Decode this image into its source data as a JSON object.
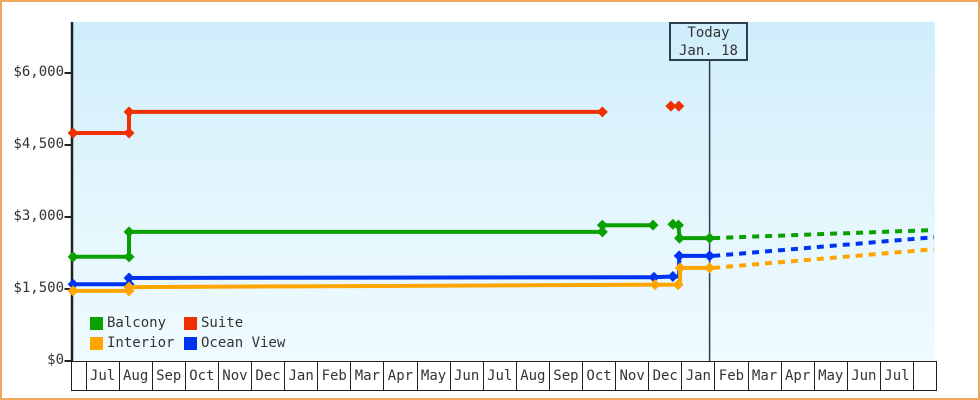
{
  "colors": {
    "frame_border": "#eda95e",
    "axis": "#222222",
    "text": "#333333",
    "today_line": "#2e3f4f",
    "plot_bg_top": "#cfeefb",
    "plot_bg_bottom": "#effbff"
  },
  "chart_data": {
    "type": "line",
    "title": "",
    "y_axis": {
      "ticks": [
        {
          "label": "$0",
          "value": 0
        },
        {
          "label": "$1,500",
          "value": 1500
        },
        {
          "label": "$3,000",
          "value": 3000
        },
        {
          "label": "$4,500",
          "value": 4500
        },
        {
          "label": "$6,000",
          "value": 6000
        }
      ],
      "range": [
        0,
        7060
      ],
      "grid": "off"
    },
    "x_axis": {
      "months": [
        "Jul",
        "Aug",
        "Sep",
        "Oct",
        "Nov",
        "Dec",
        "Jan",
        "Feb",
        "Mar",
        "Apr",
        "May",
        "Jun",
        "Jul",
        "Aug",
        "Sep",
        "Oct",
        "Nov",
        "Dec",
        "Jan",
        "Feb",
        "Mar",
        "Apr",
        "May",
        "Jun",
        "Jul"
      ]
    },
    "today": {
      "label": "Today",
      "date": "Jan. 18",
      "t": 18.84
    },
    "series": [
      {
        "name": "Suite",
        "color": "#f13000",
        "segments": [
          [
            [
              -0.39,
              4750
            ],
            [
              1.3,
              4750
            ],
            [
              1.3,
              5190
            ],
            [
              15.6,
              5190
            ]
          ]
        ],
        "markers": [
          [
            -0.39,
            4750
          ],
          [
            1.3,
            4750
          ],
          [
            1.3,
            5190
          ],
          [
            15.6,
            5190
          ],
          [
            17.67,
            5310
          ],
          [
            17.91,
            5310
          ]
        ],
        "forecast": null
      },
      {
        "name": "Balcony",
        "color": "#0aa000",
        "segments": [
          [
            [
              -0.39,
              2170
            ],
            [
              1.3,
              2170
            ],
            [
              1.3,
              2690
            ],
            [
              15.6,
              2690
            ],
            [
              15.6,
              2830
            ],
            [
              17.13,
              2830
            ]
          ],
          [
            [
              17.73,
              2850
            ],
            [
              17.9,
              2830
            ],
            [
              17.93,
              2560
            ],
            [
              18.84,
              2560
            ]
          ]
        ],
        "markers": [
          [
            -0.39,
            2170
          ],
          [
            1.3,
            2170
          ],
          [
            1.3,
            2690
          ],
          [
            15.6,
            2690
          ],
          [
            15.6,
            2830
          ],
          [
            17.13,
            2830
          ],
          [
            17.73,
            2850
          ],
          [
            17.9,
            2830
          ],
          [
            17.93,
            2560
          ],
          [
            18.84,
            2560
          ]
        ],
        "forecast": [
          [
            18.95,
            2560
          ],
          [
            25.62,
            2730
          ]
        ]
      },
      {
        "name": "Ocean View",
        "color": "#0033f0",
        "segments": [
          [
            [
              -0.39,
              1600
            ],
            [
              1.3,
              1600
            ],
            [
              1.3,
              1730
            ],
            [
              17.16,
              1745
            ],
            [
              17.73,
              1760
            ],
            [
              17.92,
              1760
            ],
            [
              17.92,
              2190
            ],
            [
              18.84,
              2190
            ]
          ]
        ],
        "markers": [
          [
            -0.39,
            1600
          ],
          [
            1.3,
            1600
          ],
          [
            1.3,
            1730
          ],
          [
            17.16,
            1745
          ],
          [
            17.73,
            1760
          ],
          [
            17.92,
            2190
          ],
          [
            18.84,
            2190
          ]
        ],
        "forecast": [
          [
            18.95,
            2190
          ],
          [
            25.62,
            2580
          ]
        ]
      },
      {
        "name": "Interior",
        "color": "#ffa500",
        "segments": [
          [
            [
              -0.39,
              1460
            ],
            [
              1.3,
              1460
            ],
            [
              1.3,
              1540
            ],
            [
              17.19,
              1590
            ],
            [
              17.95,
              1590
            ],
            [
              17.95,
              1940
            ],
            [
              18.84,
              1940
            ]
          ]
        ],
        "markers": [
          [
            -0.39,
            1460
          ],
          [
            1.3,
            1460
          ],
          [
            1.3,
            1540
          ],
          [
            17.19,
            1590
          ],
          [
            17.89,
            1590
          ],
          [
            17.95,
            1940
          ],
          [
            18.84,
            1940
          ]
        ],
        "forecast": [
          [
            18.95,
            1940
          ],
          [
            25.62,
            2330
          ]
        ]
      }
    ],
    "legend": {
      "rows": [
        [
          "Balcony",
          "Suite"
        ],
        [
          "Interior",
          "Ocean View"
        ]
      ],
      "position": "bottom-left"
    }
  }
}
